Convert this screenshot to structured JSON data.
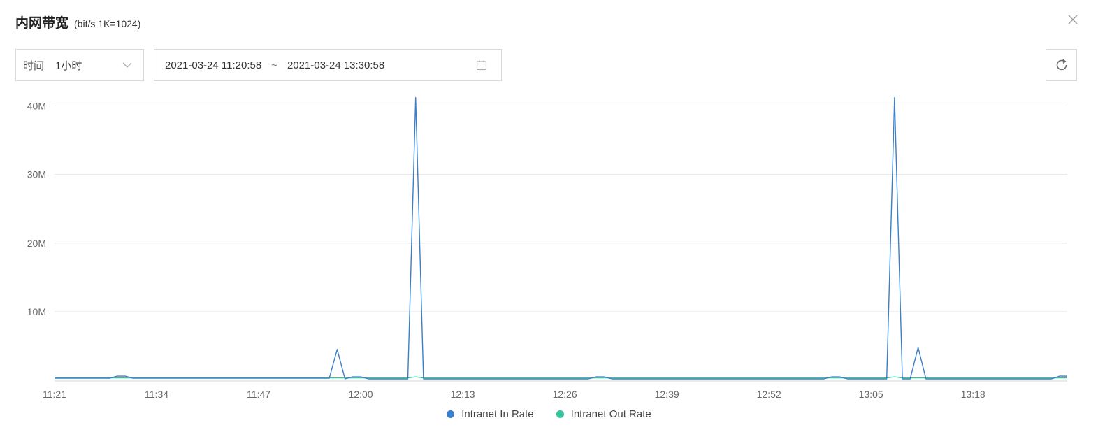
{
  "header": {
    "title": "内网带宽",
    "subtitle": "(bit/s  1K=1024)"
  },
  "controls": {
    "time_label": "时间",
    "time_value": "1小时",
    "range_start": "2021-03-24 11:20:58",
    "range_separator": "~",
    "range_end": "2021-03-24 13:30:58"
  },
  "icons": {
    "close": "close-icon",
    "dropdown": "chevron-down-icon",
    "calendar": "calendar-icon",
    "refresh": "refresh-icon"
  },
  "colors": {
    "in_rate": "#3b7ec9",
    "out_rate": "#36c29b",
    "grid": "#e5e5e5"
  },
  "chart_data": {
    "type": "line",
    "ylim": [
      0,
      40
    ],
    "y_ticks": [
      10,
      20,
      30,
      40
    ],
    "y_tick_labels": [
      "10M",
      "20M",
      "30M",
      "40M"
    ],
    "x_tick_labels": [
      "11:21",
      "11:34",
      "11:47",
      "12:00",
      "12:13",
      "12:26",
      "12:39",
      "12:52",
      "13:05",
      "13:18"
    ],
    "x_tick_minutes": [
      1,
      14,
      27,
      40,
      53,
      66,
      79,
      92,
      105,
      118
    ],
    "xlim_minutes": [
      1,
      130
    ],
    "x_units": "minutes after 11:20",
    "legend_position": "bottom",
    "series": [
      {
        "name": "Intranet In Rate",
        "points": [
          [
            1,
            0.3
          ],
          [
            8,
            0.3
          ],
          [
            9,
            0.6
          ],
          [
            10,
            0.6
          ],
          [
            11,
            0.3
          ],
          [
            36,
            0.3
          ],
          [
            37,
            4.5
          ],
          [
            38,
            0.2
          ],
          [
            39,
            0.5
          ],
          [
            40,
            0.5
          ],
          [
            41,
            0.2
          ],
          [
            46,
            0.2
          ],
          [
            47,
            42
          ],
          [
            48,
            0.2
          ],
          [
            69,
            0.2
          ],
          [
            70,
            0.5
          ],
          [
            71,
            0.5
          ],
          [
            72,
            0.2
          ],
          [
            99,
            0.2
          ],
          [
            100,
            0.5
          ],
          [
            101,
            0.5
          ],
          [
            102,
            0.2
          ],
          [
            107,
            0.2
          ],
          [
            108,
            42
          ],
          [
            109,
            0.2
          ],
          [
            110,
            0.2
          ],
          [
            111,
            4.8
          ],
          [
            112,
            0.2
          ],
          [
            128,
            0.2
          ],
          [
            129,
            0.6
          ],
          [
            130,
            0.6
          ]
        ]
      },
      {
        "name": "Intranet Out Rate",
        "points": [
          [
            1,
            0.35
          ],
          [
            46,
            0.35
          ],
          [
            47,
            0.5
          ],
          [
            48,
            0.35
          ],
          [
            107,
            0.35
          ],
          [
            108,
            0.5
          ],
          [
            109,
            0.35
          ],
          [
            130,
            0.35
          ]
        ]
      }
    ]
  }
}
